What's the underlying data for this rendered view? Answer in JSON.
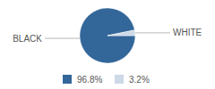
{
  "chart_data": {
    "type": "pie",
    "categories": [
      "BLACK",
      "WHITE"
    ],
    "values": [
      96.8,
      3.2
    ],
    "value_labels": [
      "96.8%",
      "3.2%"
    ],
    "colors": [
      "#336699",
      "#ccd9e6"
    ],
    "legend": "bottom"
  }
}
